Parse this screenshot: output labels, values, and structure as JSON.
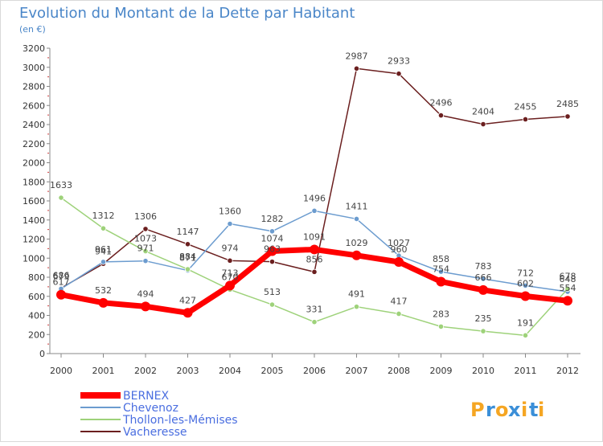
{
  "chart_data": {
    "type": "line",
    "title": "Evolution du Montant de la Dette par Habitant",
    "subtitle": "(en €)",
    "xlabel": "",
    "ylabel": "",
    "categories": [
      "2000",
      "2001",
      "2002",
      "2003",
      "2004",
      "2005",
      "2006",
      "2007",
      "2008",
      "2009",
      "2010",
      "2011",
      "2012"
    ],
    "ylim": [
      0,
      3200
    ],
    "yticks": [
      0,
      200,
      400,
      600,
      800,
      1000,
      1200,
      1400,
      1600,
      1800,
      2000,
      2200,
      2400,
      2600,
      2800,
      3000,
      3200
    ],
    "grid": false,
    "legend_position": "bottom-left",
    "series": [
      {
        "name": "Vacheresse",
        "color": "#6b1f1f",
        "values": [
          686,
          941,
          1306,
          1147,
          974,
          963,
          856,
          2987,
          2933,
          2496,
          2404,
          2455,
          2485
        ],
        "labels": [
          "686",
          "941",
          "1306",
          "1147",
          "974",
          "963",
          "856",
          "2987",
          "2933",
          "2496",
          "2404",
          "2455",
          "2485"
        ]
      },
      {
        "name": "Chevenoz",
        "color": "#6c9ccf",
        "values": [
          679,
          961,
          971,
          871,
          1360,
          1282,
          1496,
          1411,
          1027,
          858,
          783,
          712,
          648
        ],
        "labels": [
          "679",
          "961",
          "971",
          "871",
          "1360",
          "1282",
          "1496",
          "1411",
          "1027",
          "858",
          "783",
          "712",
          "648"
        ]
      },
      {
        "name": "Thollon-les-Mémises",
        "color": "#9ed27a",
        "values": [
          1633,
          1312,
          1073,
          884,
          670,
          513,
          331,
          491,
          417,
          283,
          235,
          191,
          678
        ],
        "labels": [
          "1633",
          "1312",
          "1073",
          "884",
          "670",
          "513",
          "331",
          "491",
          "417",
          "283",
          "235",
          "191",
          "678"
        ]
      },
      {
        "name": "BERNEX",
        "color": "#ff0000",
        "values": [
          617,
          532,
          494,
          427,
          713,
          1074,
          1091,
          1029,
          960,
          754,
          666,
          602,
          554
        ],
        "labels": [
          "617",
          "532",
          "494",
          "427",
          "713",
          "1074",
          "1091",
          "1029",
          "960",
          "754",
          "666",
          "602",
          "554"
        ]
      }
    ],
    "legend_order": [
      "BERNEX",
      "Chevenoz",
      "Thollon-les-Mémises",
      "Vacheresse"
    ]
  },
  "logo": {
    "text": "Proxiti",
    "letters": [
      "P",
      "r",
      "o",
      "x",
      "i",
      "t",
      "i"
    ],
    "colors": [
      "#f5a623",
      "#3b8fd8",
      "#f5a623",
      "#3b8fd8",
      "#f5a623",
      "#3b8fd8",
      "#f5a623"
    ]
  },
  "colors": {
    "title": "#4a86c8",
    "axis": "#888888",
    "tick_text": "#333333",
    "value_label": "#444444",
    "legend_text": "#4a6ee0"
  }
}
